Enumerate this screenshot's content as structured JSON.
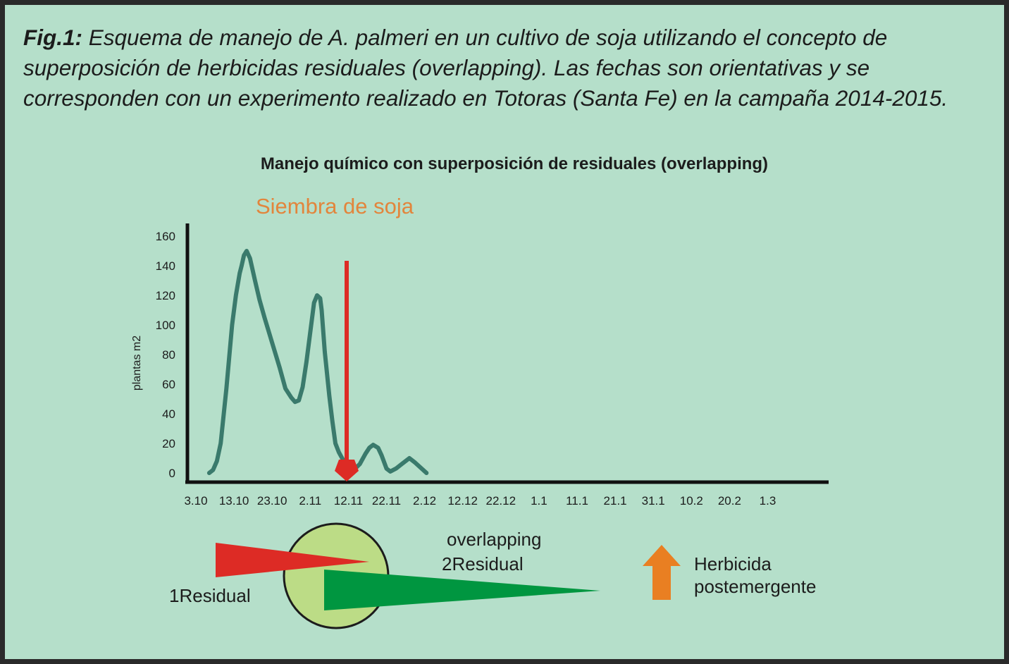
{
  "caption": {
    "fig_label": "Fig.1:",
    "text": " Esquema de manejo de A. palmeri en un cultivo de soja utilizando el concepto de superposición de herbicidas residuales (overlapping). Las fechas son orientativas y se corresponden con un experimento realizado en Totoras (Santa Fe) en la campaña 2014-2015."
  },
  "chart_data": {
    "type": "line",
    "title": "Manejo químico con superposición de residuales (overlapping)",
    "ylabel": "plantas m2",
    "xlabel": "",
    "categories": [
      "3.10",
      "13.10",
      "23.10",
      "2.11",
      "12.11",
      "22.11",
      "2.12",
      "12.12",
      "22.12",
      "1.1",
      "11.1",
      "21.1",
      "31.1",
      "10.2",
      "20.2",
      "1.3"
    ],
    "yticks": [
      0,
      20,
      40,
      60,
      80,
      100,
      120,
      140,
      160
    ],
    "ylim": [
      0,
      160
    ],
    "grid": false,
    "series": [
      {
        "color": "#3a7a6c",
        "points": [
          [
            3.5,
            0
          ],
          [
            4.5,
            2
          ],
          [
            5.5,
            8
          ],
          [
            6.5,
            20
          ],
          [
            8,
            57
          ],
          [
            9.5,
            100
          ],
          [
            10.5,
            120
          ],
          [
            11.5,
            135
          ],
          [
            12,
            140
          ],
          [
            12.6,
            147
          ],
          [
            13.3,
            150
          ],
          [
            14.2,
            145
          ],
          [
            15.5,
            130
          ],
          [
            16.7,
            117
          ],
          [
            18,
            105
          ],
          [
            20,
            88
          ],
          [
            22,
            71
          ],
          [
            23.5,
            57
          ],
          [
            25,
            51
          ],
          [
            26,
            48
          ],
          [
            27,
            49
          ],
          [
            28,
            58
          ],
          [
            29,
            75
          ],
          [
            30,
            95
          ],
          [
            31,
            115
          ],
          [
            31.8,
            120
          ],
          [
            32.6,
            118
          ],
          [
            33,
            110
          ],
          [
            33.8,
            82
          ],
          [
            35,
            52
          ],
          [
            35.8,
            35
          ],
          [
            36.6,
            20
          ],
          [
            37.5,
            14
          ],
          [
            39,
            7
          ],
          [
            40.5,
            4
          ],
          [
            41.8,
            3
          ],
          [
            43,
            6
          ],
          [
            44.5,
            13
          ],
          [
            45.5,
            17
          ],
          [
            46.5,
            19
          ],
          [
            47.8,
            17
          ],
          [
            48.7,
            12
          ],
          [
            50,
            3
          ],
          [
            51,
            1
          ],
          [
            52.5,
            3
          ],
          [
            54,
            6
          ],
          [
            56,
            10
          ],
          [
            57.5,
            7
          ],
          [
            60.5,
            0
          ]
        ]
      }
    ],
    "annotations": [
      {
        "text": "Siembra de soja",
        "x_date": "7.11",
        "color": "#e2853c",
        "arrow_color": "#dd2b25"
      }
    ]
  },
  "legend": {
    "residual1": {
      "label": "1Residual",
      "color": "#dd2b25"
    },
    "residual2": {
      "label": "2Residual",
      "color": "#009640"
    },
    "overlap": {
      "label": "overlapping",
      "color": "#bcdc86"
    },
    "postemergente": {
      "label_line1": "Herbicida",
      "label_line2": "postemergente",
      "color": "#e97f22"
    }
  }
}
